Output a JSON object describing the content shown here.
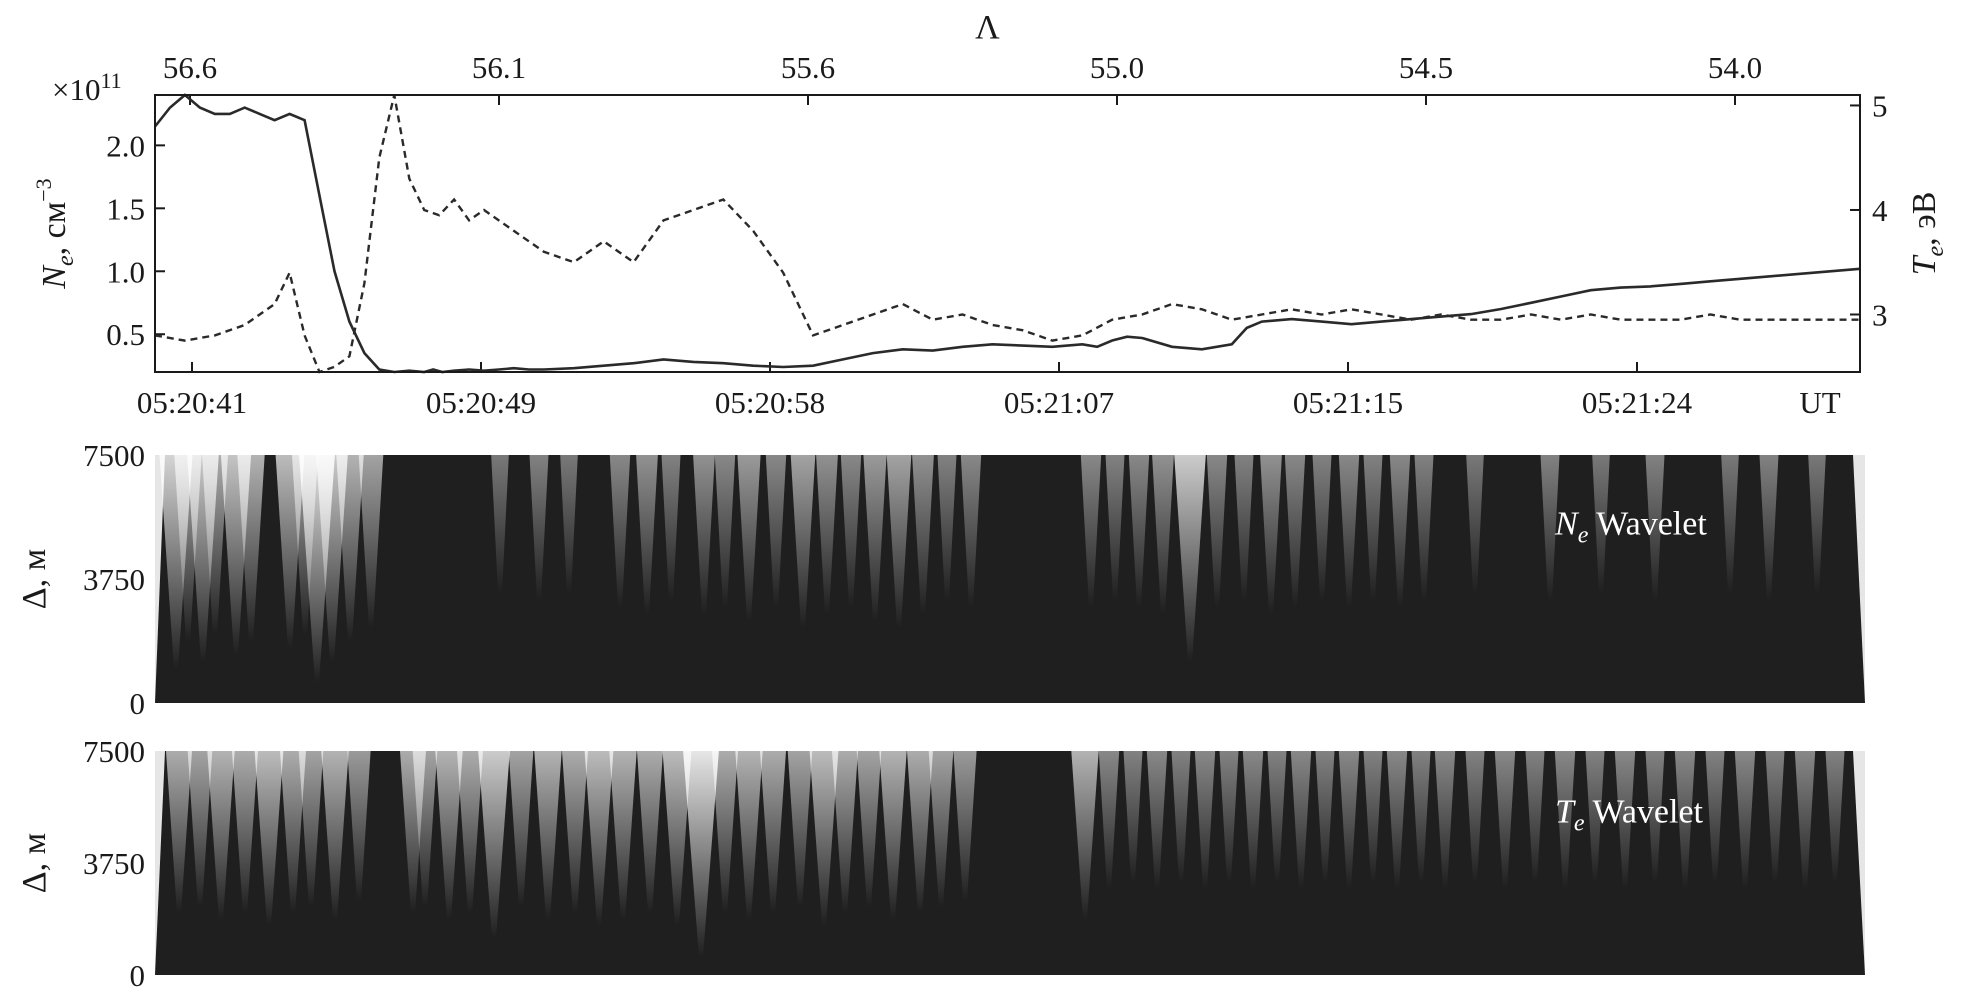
{
  "chart_data": [
    {
      "type": "line",
      "top_axis": {
        "label": "Λ",
        "ticks": [
          "56.6",
          "56.1",
          "55.6",
          "55.0",
          "54.5",
          "54.0"
        ]
      },
      "x_axis": {
        "ticks": [
          "05:20:41",
          "05:20:49",
          "05:20:58",
          "05:21:07",
          "05:21:15",
          "05:21:24"
        ],
        "unit": "UT"
      },
      "y_left": {
        "label_main": "N",
        "label_sub": "e",
        "label_rest": ", см",
        "label_sup": "−3",
        "multiplier_base": "×10",
        "multiplier_exp": "11",
        "ticks": [
          "0.5",
          "1.0",
          "1.5",
          "2.0"
        ],
        "ylim": [
          0.2,
          2.4
        ]
      },
      "y_right": {
        "label_main": "T",
        "label_sub": "e",
        "label_rest": ", эВ",
        "ticks": [
          "3",
          "4",
          "5"
        ],
        "ylim": [
          2.45,
          5.1
        ]
      },
      "xlim": [
        0,
        57
      ],
      "series": [
        {
          "style": "solid",
          "axis": "left",
          "x": [
            0,
            0.5,
            1,
            1.5,
            2,
            2.5,
            3,
            3.5,
            4,
            4.5,
            5,
            5.5,
            6,
            6.5,
            7,
            7.5,
            8,
            8.5,
            9,
            9.3,
            9.6,
            10,
            10.5,
            11,
            11.5,
            12,
            12.5,
            13,
            14,
            15,
            16,
            17,
            18,
            19,
            20,
            21,
            22,
            23,
            24,
            25,
            26,
            27,
            28,
            29,
            30,
            31,
            31.5,
            32,
            32.5,
            33,
            34,
            35,
            36,
            36.5,
            37,
            38,
            39,
            40,
            41,
            42,
            43,
            44,
            45,
            46,
            47,
            48,
            49,
            50,
            51,
            52,
            53,
            54,
            55,
            56,
            57
          ],
          "y": [
            2.15,
            2.3,
            2.4,
            2.3,
            2.25,
            2.25,
            2.3,
            2.25,
            2.2,
            2.25,
            2.2,
            1.6,
            1.0,
            0.6,
            0.35,
            0.22,
            0.2,
            0.21,
            0.2,
            0.22,
            0.2,
            0.21,
            0.22,
            0.21,
            0.22,
            0.23,
            0.22,
            0.22,
            0.23,
            0.25,
            0.27,
            0.3,
            0.28,
            0.27,
            0.25,
            0.24,
            0.25,
            0.3,
            0.35,
            0.38,
            0.37,
            0.4,
            0.42,
            0.41,
            0.4,
            0.42,
            0.4,
            0.45,
            0.48,
            0.47,
            0.4,
            0.38,
            0.42,
            0.55,
            0.6,
            0.62,
            0.6,
            0.58,
            0.6,
            0.62,
            0.64,
            0.66,
            0.7,
            0.75,
            0.8,
            0.85,
            0.87,
            0.88,
            0.9,
            0.92,
            0.94,
            0.96,
            0.98,
            1.0,
            1.02
          ]
        },
        {
          "style": "dashed",
          "axis": "right",
          "x": [
            0,
            1,
            2,
            3,
            4,
            4.5,
            5,
            5.5,
            6,
            6.5,
            7,
            7.5,
            8,
            8.5,
            9,
            9.5,
            10,
            10.5,
            11,
            12,
            13,
            14,
            15,
            16,
            17,
            18,
            19,
            20,
            21,
            22,
            23,
            24,
            25,
            26,
            27,
            28,
            29,
            30,
            31,
            32,
            33,
            34,
            35,
            36,
            37,
            38,
            39,
            40,
            41,
            42,
            43,
            44,
            45,
            46,
            47,
            48,
            49,
            50,
            51,
            52,
            53,
            54,
            55,
            56,
            57
          ],
          "y": [
            2.8,
            2.75,
            2.8,
            2.9,
            3.1,
            3.4,
            2.8,
            2.4,
            2.5,
            2.6,
            3.3,
            4.5,
            5.1,
            4.3,
            4.0,
            3.95,
            4.1,
            3.9,
            4.0,
            3.8,
            3.6,
            3.5,
            3.7,
            3.5,
            3.9,
            4.0,
            4.1,
            3.8,
            3.4,
            2.8,
            2.9,
            3.0,
            3.1,
            2.95,
            3.0,
            2.9,
            2.85,
            2.75,
            2.8,
            2.95,
            3.0,
            3.1,
            3.05,
            2.95,
            3.0,
            3.05,
            3.0,
            3.05,
            3.0,
            2.95,
            3.0,
            2.95,
            2.95,
            3.0,
            2.95,
            3.0,
            2.95,
            2.95,
            2.95,
            3.0,
            2.95,
            2.95,
            2.95,
            2.95,
            2.95
          ]
        }
      ]
    },
    {
      "type": "heatmap",
      "title_main": "N",
      "title_sub": "e",
      "title_rest": " Wavelet",
      "ylabel": "Δ, м",
      "y_ticks": [
        "0",
        "3750",
        "7500"
      ],
      "ylim": [
        0,
        7500
      ],
      "xlim": [
        0,
        57
      ],
      "bright_x": [
        0.7,
        1.1,
        1.6,
        2.0,
        2.7,
        3.2,
        4.5,
        5.0,
        5.4,
        5.9,
        6.5,
        7.2,
        11.5,
        12.8,
        13.8,
        15.5,
        16.4,
        17.2,
        18.3,
        19.0,
        19.8,
        20.7,
        21.6,
        22.4,
        23.2,
        24.0,
        24.8,
        25.6,
        26.4,
        27.2,
        31.2,
        32.0,
        32.8,
        33.6,
        34.5,
        35.4,
        36.3,
        37.2,
        38.0,
        38.9,
        39.8,
        40.6,
        41.5,
        42.3,
        44.0,
        46.5,
        48.2,
        50.0,
        52.5,
        53.8,
        55.4
      ],
      "bright_v": [
        0.75,
        0.55,
        0.7,
        0.5,
        0.65,
        0.55,
        0.6,
        0.5,
        0.85,
        0.7,
        0.55,
        0.45,
        0.2,
        0.25,
        0.2,
        0.3,
        0.35,
        0.25,
        0.35,
        0.3,
        0.4,
        0.3,
        0.45,
        0.35,
        0.3,
        0.4,
        0.45,
        0.35,
        0.25,
        0.3,
        0.3,
        0.25,
        0.3,
        0.35,
        0.7,
        0.3,
        0.25,
        0.35,
        0.3,
        0.25,
        0.3,
        0.25,
        0.3,
        0.25,
        0.2,
        0.25,
        0.2,
        0.25,
        0.2,
        0.25,
        0.2
      ]
    },
    {
      "type": "heatmap",
      "title_main": "T",
      "title_sub": "e",
      "title_rest": " Wavelet",
      "ylabel": "Δ, м",
      "y_ticks": [
        "0",
        "3750",
        "7500"
      ],
      "ylim": [
        0,
        7500
      ],
      "xlim": [
        0,
        57
      ],
      "bright_x": [
        0.8,
        1.5,
        2.2,
        3.0,
        3.8,
        4.6,
        5.2,
        6.0,
        6.8,
        8.6,
        9.0,
        9.8,
        10.5,
        11.3,
        12.2,
        13.1,
        14.0,
        14.8,
        15.6,
        16.5,
        17.4,
        18.2,
        19.0,
        19.8,
        20.6,
        21.5,
        22.3,
        23.0,
        23.8,
        24.6,
        25.5,
        26.2,
        27.0,
        31.0,
        31.8,
        32.6,
        33.4,
        34.2,
        35.0,
        35.8,
        36.6,
        37.4,
        38.2,
        39.0,
        39.8,
        40.6,
        41.4,
        42.2,
        43.0,
        44.0,
        45.0,
        46.0,
        47.0,
        48.0,
        49.0,
        50.0,
        51.0,
        52.0,
        53.0,
        54.0,
        55.0,
        56.0
      ],
      "bright_v": [
        0.5,
        0.45,
        0.55,
        0.5,
        0.6,
        0.5,
        0.45,
        0.55,
        0.4,
        0.5,
        0.45,
        0.55,
        0.5,
        0.7,
        0.45,
        0.55,
        0.5,
        0.6,
        0.55,
        0.5,
        0.6,
        0.85,
        0.5,
        0.55,
        0.5,
        0.45,
        0.6,
        0.5,
        0.45,
        0.55,
        0.5,
        0.45,
        0.4,
        0.55,
        0.3,
        0.25,
        0.3,
        0.25,
        0.3,
        0.25,
        0.3,
        0.25,
        0.3,
        0.25,
        0.3,
        0.25,
        0.3,
        0.25,
        0.3,
        0.25,
        0.3,
        0.25,
        0.3,
        0.25,
        0.3,
        0.25,
        0.3,
        0.25,
        0.3,
        0.25,
        0.3,
        0.25
      ]
    }
  ]
}
